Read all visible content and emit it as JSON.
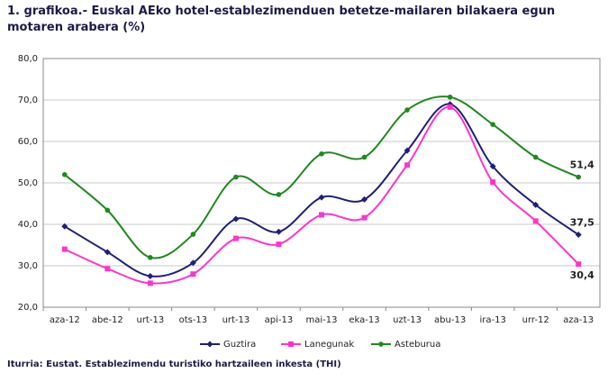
{
  "chart_data": {
    "type": "line",
    "title": "1. grafikoa.- Euskal AEko hotel-establezimenduen betetze-mailaren bilakaera egun motaren arabera (%)",
    "source": "Iturria: Eustat. Establezimendu turistiko hartzaileen inkesta (THI)",
    "categories": [
      "aza-12",
      "abe-12",
      "urt-13",
      "ots-13",
      "urt-13",
      "api-13",
      "mai-13",
      "eka-13",
      "uzt-13",
      "abu-13",
      "ira-13",
      "urr-12",
      "aza-13"
    ],
    "series": [
      {
        "name": "Guztira",
        "color": "#1f1f7a",
        "marker": "diamond",
        "values": [
          39.5,
          33.3,
          27.5,
          30.7,
          41.3,
          38.2,
          46.5,
          46.0,
          57.8,
          69.0,
          54.0,
          44.7,
          37.5
        ],
        "value_labels": [
          null,
          null,
          null,
          null,
          null,
          null,
          null,
          null,
          null,
          null,
          null,
          null,
          "37,5"
        ]
      },
      {
        "name": "Lanegunak",
        "color": "#ff33cc",
        "marker": "square",
        "values": [
          34.0,
          29.3,
          25.8,
          28.0,
          36.6,
          35.2,
          42.3,
          41.6,
          54.3,
          68.3,
          50.2,
          40.8,
          30.4
        ],
        "value_labels": [
          null,
          null,
          null,
          null,
          null,
          null,
          null,
          null,
          null,
          null,
          null,
          null,
          "30,4"
        ]
      },
      {
        "name": "Asteburua",
        "color": "#1e8a1e",
        "marker": "circle",
        "values": [
          52.0,
          43.4,
          32.0,
          37.6,
          51.4,
          47.2,
          57.0,
          56.2,
          67.6,
          70.7,
          64.1,
          56.2,
          51.4
        ],
        "value_labels": [
          null,
          null,
          null,
          null,
          null,
          null,
          null,
          null,
          null,
          null,
          null,
          null,
          "51,4"
        ]
      }
    ],
    "label_color": "#8b1a4a",
    "ylim": [
      20,
      80
    ],
    "yticks": [
      {
        "value": 20,
        "label": "20,0"
      },
      {
        "value": 30,
        "label": "30,0"
      },
      {
        "value": 40,
        "label": "40,0"
      },
      {
        "value": 50,
        "label": "50,0"
      },
      {
        "value": 60,
        "label": "60,0"
      },
      {
        "value": 70,
        "label": "70,0"
      },
      {
        "value": 80,
        "label": "80,0"
      }
    ],
    "grid": true,
    "legend": "bottom"
  }
}
